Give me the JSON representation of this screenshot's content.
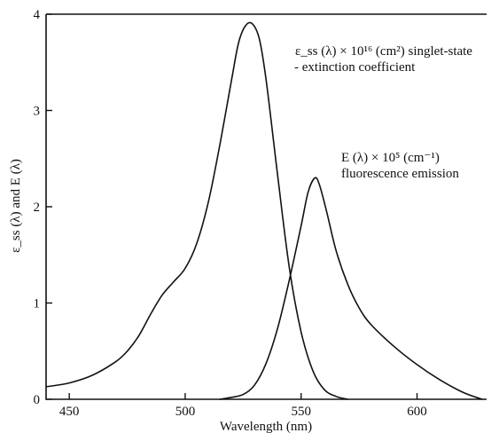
{
  "chart_data": {
    "type": "line",
    "xlabel": "Wavelength (nm)",
    "ylabel": "ε_ss (λ) and E (λ)",
    "xlim": [
      440,
      630
    ],
    "ylim": [
      0,
      4
    ],
    "x_ticks": [
      450,
      500,
      550,
      600
    ],
    "y_ticks": [
      0,
      1,
      2,
      3,
      4
    ],
    "grid": false,
    "series": [
      {
        "name": "ε_ss (λ) × 10¹⁶ (cm²) singlet-state extinction coefficient",
        "label_lines": [
          "ε_ss (λ) × 10¹⁶ (cm²) singlet-state",
          "extinction  coefficient"
        ],
        "x": [
          440,
          450,
          460,
          470,
          475,
          480,
          485,
          490,
          495,
          500,
          505,
          510,
          515,
          520,
          523,
          526,
          529,
          532,
          535,
          540,
          545,
          550,
          555,
          560,
          565,
          570
        ],
        "y": [
          0.13,
          0.17,
          0.25,
          0.39,
          0.5,
          0.66,
          0.88,
          1.08,
          1.22,
          1.36,
          1.62,
          2.05,
          2.65,
          3.32,
          3.7,
          3.88,
          3.9,
          3.74,
          3.3,
          2.3,
          1.35,
          0.7,
          0.3,
          0.1,
          0.03,
          0.0
        ]
      },
      {
        "name": "E (λ) × 10⁵ (cm⁻¹) fluorescence emission",
        "label_lines": [
          "E (λ) × 10⁵ (cm⁻¹)",
          "fluorescence emission"
        ],
        "x": [
          515,
          520,
          525,
          530,
          535,
          540,
          545,
          550,
          553,
          556,
          558,
          561,
          565,
          570,
          575,
          580,
          590,
          600,
          610,
          620,
          628
        ],
        "y": [
          0.0,
          0.02,
          0.05,
          0.15,
          0.38,
          0.75,
          1.25,
          1.8,
          2.15,
          2.3,
          2.22,
          1.95,
          1.55,
          1.2,
          0.95,
          0.78,
          0.55,
          0.36,
          0.2,
          0.07,
          0.0
        ]
      }
    ]
  }
}
